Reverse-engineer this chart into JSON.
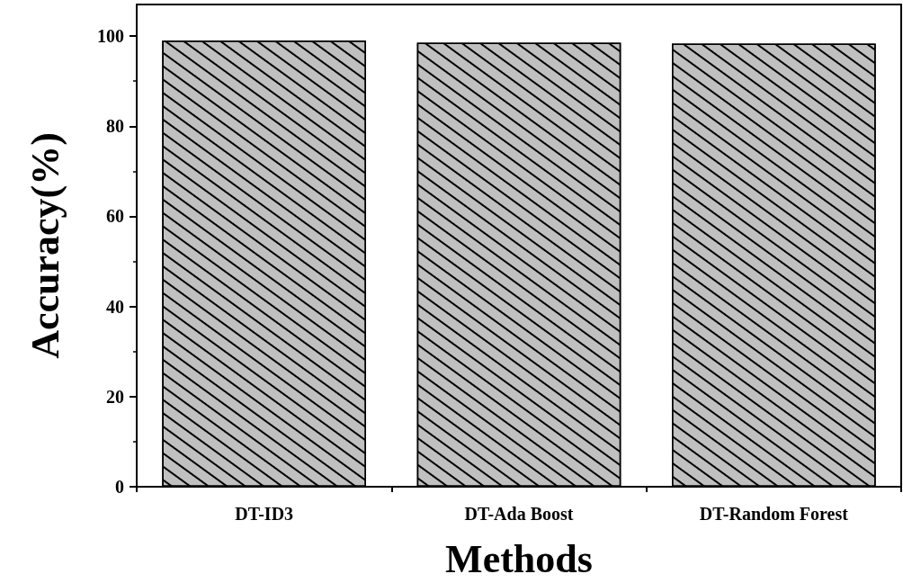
{
  "chart_data": {
    "type": "bar",
    "xlabel": "Methods",
    "ylabel": "Accuracy(%)",
    "categories": [
      "DT-ID3",
      "DT-Ada Boost",
      "DT-Random Forest"
    ],
    "values": [
      99,
      98.5,
      98.3
    ],
    "color": "#c0c0c0",
    "ylim": [
      0,
      107
    ],
    "yticks": [
      0,
      20,
      40,
      60,
      80,
      100
    ],
    "grid": false
  }
}
